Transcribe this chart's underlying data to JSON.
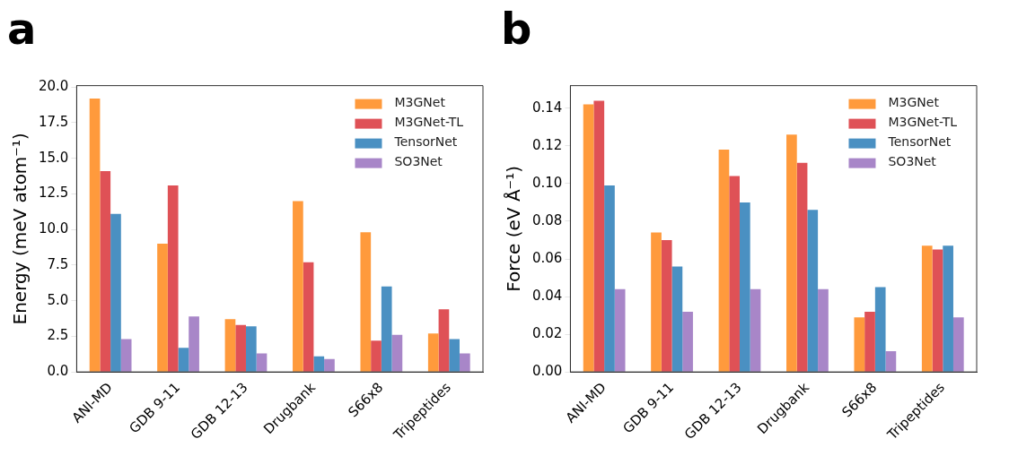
{
  "chart_data": [
    {
      "type": "bar",
      "title": "a",
      "ylabel": "Energy (meV atom⁻¹)",
      "categories": [
        "ANI-MD",
        "GDB 9-11",
        "GDB 12-13",
        "Drugbank",
        "S66x8",
        "Tripeptides"
      ],
      "series": [
        {
          "name": "M3GNet",
          "color": "#ff9a3c",
          "values": [
            19.2,
            9.0,
            3.7,
            12.0,
            9.8,
            2.7
          ]
        },
        {
          "name": "M3GNet-TL",
          "color": "#df5156",
          "values": [
            14.1,
            13.1,
            3.3,
            7.7,
            2.2,
            4.4
          ]
        },
        {
          "name": "TensorNet",
          "color": "#4a90c2",
          "values": [
            11.1,
            1.7,
            3.2,
            1.1,
            6.0,
            2.3
          ]
        },
        {
          "name": "SO3Net",
          "color": "#a886c8",
          "values": [
            2.3,
            3.9,
            1.3,
            0.9,
            2.6,
            1.3
          ]
        }
      ],
      "ylim": [
        0,
        20.1
      ],
      "yticks": [
        {
          "value": 0,
          "label": "0.0"
        },
        {
          "value": 2.5,
          "label": "2.5"
        },
        {
          "value": 5,
          "label": "5.0"
        },
        {
          "value": 7.5,
          "label": "7.5"
        },
        {
          "value": 10,
          "label": "10.0"
        },
        {
          "value": 12.5,
          "label": "12.5"
        },
        {
          "value": 15,
          "label": "15.0"
        },
        {
          "value": 17.5,
          "label": "17.5"
        },
        {
          "value": 20,
          "label": "20.0"
        }
      ],
      "grid": false,
      "legend": "top right"
    },
    {
      "type": "bar",
      "title": "b",
      "ylabel": "Force (eV Å⁻¹)",
      "categories": [
        "ANI-MD",
        "GDB 9-11",
        "GDB 12-13",
        "Drugbank",
        "S66x8",
        "Tripeptides"
      ],
      "series": [
        {
          "name": "M3GNet",
          "color": "#ff9a3c",
          "values": [
            0.142,
            0.074,
            0.118,
            0.126,
            0.029,
            0.067
          ]
        },
        {
          "name": "M3GNet-TL",
          "color": "#df5156",
          "values": [
            0.144,
            0.07,
            0.104,
            0.111,
            0.032,
            0.065
          ]
        },
        {
          "name": "TensorNet",
          "color": "#4a90c2",
          "values": [
            0.099,
            0.056,
            0.09,
            0.086,
            0.045,
            0.067
          ]
        },
        {
          "name": "SO3Net",
          "color": "#a886c8",
          "values": [
            0.044,
            0.032,
            0.044,
            0.044,
            0.011,
            0.029
          ]
        }
      ],
      "ylim": [
        0,
        0.152
      ],
      "yticks": [
        {
          "value": 0,
          "label": "0.00"
        },
        {
          "value": 0.02,
          "label": "0.02"
        },
        {
          "value": 0.04,
          "label": "0.04"
        },
        {
          "value": 0.06,
          "label": "0.06"
        },
        {
          "value": 0.08,
          "label": "0.08"
        },
        {
          "value": 0.1,
          "label": "0.10"
        },
        {
          "value": 0.12,
          "label": "0.12"
        },
        {
          "value": 0.14,
          "label": "0.14"
        }
      ],
      "grid": false,
      "legend": "top right"
    }
  ]
}
